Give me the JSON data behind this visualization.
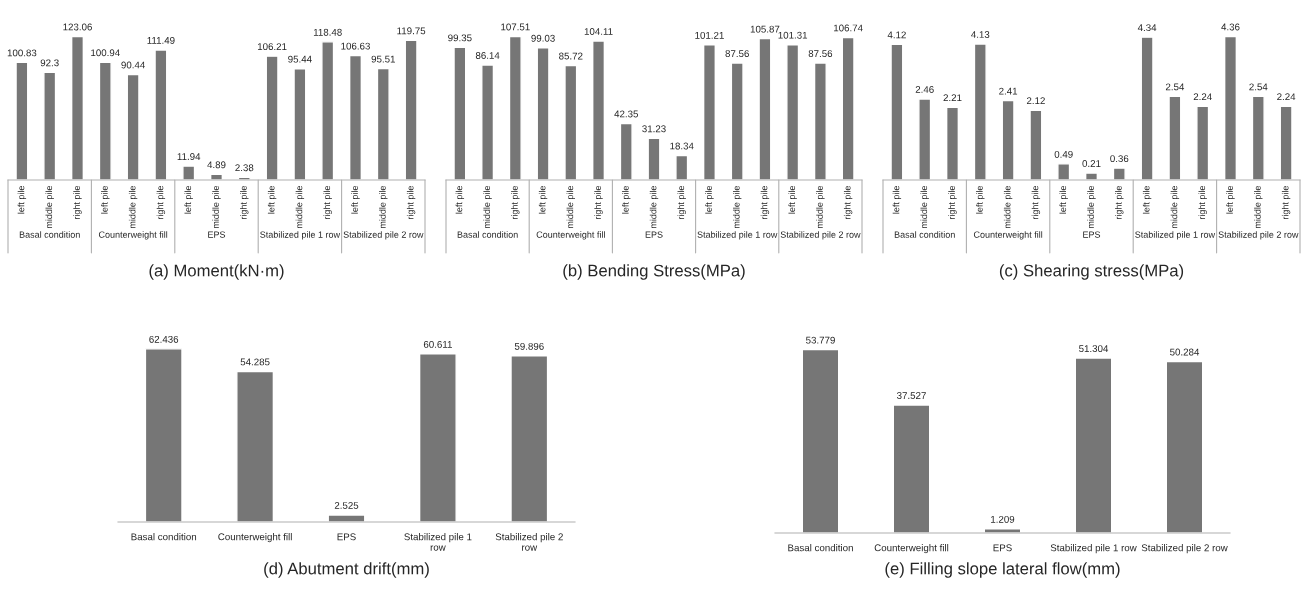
{
  "chart_data": [
    {
      "type": "bar",
      "title": "(a) Moment(kN·m)",
      "categories": [
        "left pile",
        "middle pile",
        "right pile",
        "left pile",
        "middle pile",
        "right pile",
        "left pile",
        "middle pile",
        "right pile",
        "left pile",
        "middle pile",
        "right pile",
        "left pile",
        "middle pile",
        "right pile"
      ],
      "values": [
        100.83,
        92.3,
        123.06,
        100.94,
        90.44,
        111.49,
        11.94,
        4.89,
        2.38,
        106.21,
        95.44,
        118.48,
        106.63,
        95.51,
        119.75
      ],
      "color": "#767676",
      "data_labels": true,
      "annotations": [
        "Basal condition",
        "Counterweight fill",
        "EPS",
        "Stabilized pile 1 row",
        "Stabilized pile 2 row"
      ]
    },
    {
      "type": "bar",
      "title": "(b) Bending Stress(MPa)",
      "categories": [
        "left pile",
        "middle pile",
        "right pile",
        "left pile",
        "middle pile",
        "right pile",
        "left pile",
        "middle pile",
        "right pile",
        "left pile",
        "middle pile",
        "right pile",
        "left pile",
        "middle pile",
        "right pile"
      ],
      "values": [
        99.35,
        86.14,
        107.51,
        99.03,
        85.72,
        104.11,
        42.35,
        31.23,
        18.34,
        101.21,
        87.56,
        105.87,
        101.31,
        87.56,
        106.74
      ],
      "color": "#767676",
      "data_labels": true,
      "annotations": [
        "Basal condition",
        "Counterweight fill",
        "EPS",
        "Stabilized pile 1 row",
        "Stabilized pile 2 row"
      ]
    },
    {
      "type": "bar",
      "title": "(c) Shearing stress(MPa)",
      "categories": [
        "left pile",
        "middle pile",
        "right pile",
        "left pile",
        "middle pile",
        "right pile",
        "left pile",
        "middle pile",
        "right pile",
        "left pile",
        "middle pile",
        "right pile",
        "left pile",
        "middle pile",
        "right pile"
      ],
      "values": [
        4.12,
        2.46,
        2.21,
        4.13,
        2.41,
        2.12,
        0.49,
        0.21,
        0.36,
        4.34,
        2.54,
        2.24,
        4.36,
        2.54,
        2.24
      ],
      "color": "#767676",
      "data_labels": true,
      "annotations": [
        "Basal condition",
        "Counterweight fill",
        "EPS",
        "Stabilized pile 1 row",
        "Stabilized pile 2 row"
      ]
    },
    {
      "type": "bar",
      "title": "(d) Abutment drift(mm)",
      "categories": [
        "Basal condition",
        "Counterweight fill",
        "EPS",
        "Stabilized pile 1\nrow",
        "Stabilized pile 2\nrow"
      ],
      "values": [
        62.436,
        54.285,
        2.525,
        60.611,
        59.896
      ],
      "color": "#767676",
      "data_labels": true
    },
    {
      "type": "bar",
      "title": "(e) Filling slope lateral flow(mm)",
      "categories": [
        "Basal condition",
        "Counterweight fill",
        "EPS",
        "Stabilized pile 1 row",
        "Stabilized pile 2 row"
      ],
      "values": [
        53.779,
        37.527,
        1.209,
        51.304,
        50.284
      ],
      "color": "#767676",
      "data_labels": true
    }
  ]
}
